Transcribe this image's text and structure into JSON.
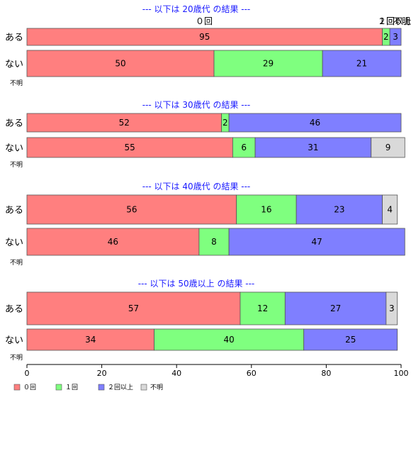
{
  "chart_data": {
    "type": "bar",
    "orientation": "horizontal-stacked",
    "categories_legend": [
      "０回",
      "１回",
      "２回以上",
      "不明"
    ],
    "colors": [
      "#ff7f7f",
      "#7fff7f",
      "#7f7fff",
      "#d9d9d9"
    ],
    "xlim": [
      0,
      100
    ],
    "xticks": [
      0,
      20,
      40,
      60,
      80,
      100
    ],
    "panels": [
      {
        "title": "--- 以下は 20歳代 の結果 ---",
        "top_labels": [
          "０回",
          "１回",
          "２回以上",
          "不明"
        ],
        "rows": [
          {
            "label": "ある",
            "values": [
              95,
              2,
              3,
              0
            ],
            "labels": [
              "95",
              "2",
              "3",
              ""
            ]
          },
          {
            "label": "ない",
            "values": [
              50,
              29,
              21,
              0
            ],
            "labels": [
              "50",
              "29",
              "21",
              ""
            ]
          },
          {
            "label": "不明",
            "values": [
              0,
              0,
              0,
              0
            ],
            "labels": [
              "",
              "",
              "",
              ""
            ]
          }
        ]
      },
      {
        "title": "--- 以下は 30歳代 の結果 ---",
        "rows": [
          {
            "label": "ある",
            "values": [
              52,
              2,
              46,
              0
            ],
            "labels": [
              "52",
              "2",
              "46",
              ""
            ]
          },
          {
            "label": "ない",
            "values": [
              55,
              6,
              31,
              9
            ],
            "labels": [
              "55",
              "6",
              "31",
              "9"
            ]
          },
          {
            "label": "不明",
            "values": [
              0,
              0,
              0,
              0
            ],
            "labels": [
              "",
              "",
              "",
              ""
            ]
          }
        ]
      },
      {
        "title": "--- 以下は 40歳代 の結果 ---",
        "rows": [
          {
            "label": "ある",
            "values": [
              56,
              16,
              23,
              4
            ],
            "labels": [
              "56",
              "16",
              "23",
              "4"
            ]
          },
          {
            "label": "ない",
            "values": [
              46,
              8,
              47,
              0
            ],
            "labels": [
              "46",
              "8",
              "47",
              ""
            ]
          },
          {
            "label": "不明",
            "values": [
              0,
              0,
              0,
              0
            ],
            "labels": [
              "",
              "",
              "",
              ""
            ]
          }
        ]
      },
      {
        "title": "--- 以下は 50歳以上 の結果 ---",
        "rows": [
          {
            "label": "ある",
            "values": [
              57,
              12,
              27,
              3
            ],
            "labels": [
              "57",
              "12",
              "27",
              "3"
            ]
          },
          {
            "label": "ない",
            "values": [
              34,
              40,
              25,
              0
            ],
            "labels": [
              "34",
              "40",
              "25",
              ""
            ]
          },
          {
            "label": "不明",
            "values": [
              0,
              0,
              0,
              0
            ],
            "labels": [
              "",
              "",
              "",
              ""
            ]
          }
        ]
      }
    ]
  }
}
